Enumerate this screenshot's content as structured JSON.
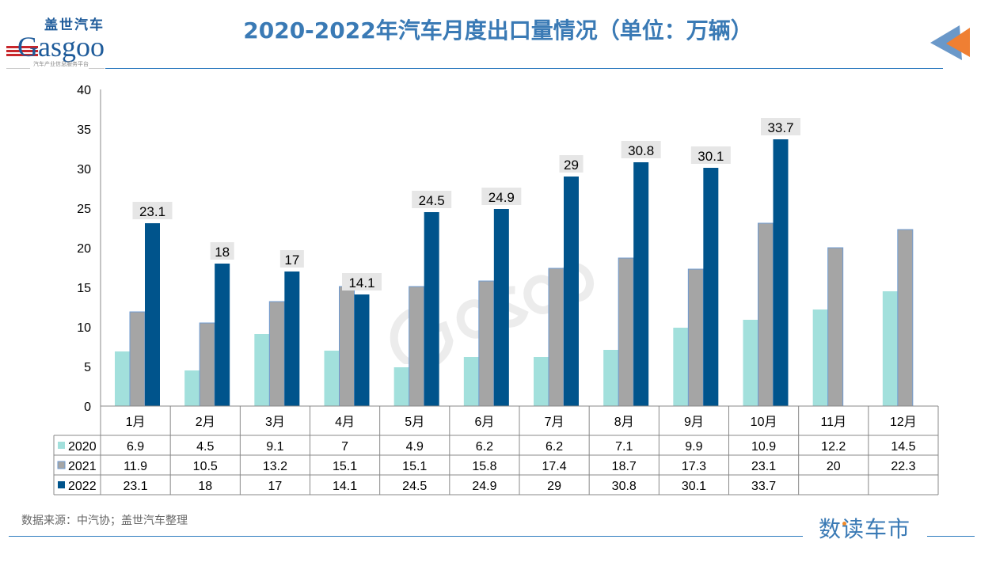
{
  "header": {
    "title": "2020-2022年汽车月度出口量情况（单位：万辆）"
  },
  "logo": {
    "cn": "盖世汽车",
    "en": "Gasgoo",
    "tagline": "汽车产业信息服务平台"
  },
  "footer": {
    "source": "数据来源：中汽协；盖世汽车整理",
    "brand": "数读车市"
  },
  "colors": {
    "2020": "#a2e0dc",
    "2021": "#a5a5a5",
    "2022": "#00548c",
    "accent": "#3a7ab5"
  },
  "chart_data": {
    "type": "bar",
    "title": "2020-2022年汽车月度出口量情况（单位：万辆）",
    "categories": [
      "1月",
      "2月",
      "3月",
      "4月",
      "5月",
      "6月",
      "7月",
      "8月",
      "9月",
      "10月",
      "11月",
      "12月"
    ],
    "series": [
      {
        "name": "2020",
        "values": [
          6.9,
          4.5,
          9.1,
          7,
          4.9,
          6.2,
          6.2,
          7.1,
          9.9,
          10.9,
          12.2,
          14.5
        ]
      },
      {
        "name": "2021",
        "values": [
          11.9,
          10.5,
          13.2,
          15.1,
          15.1,
          15.8,
          17.4,
          18.7,
          17.3,
          23.1,
          20,
          22.3
        ]
      },
      {
        "name": "2022",
        "values": [
          23.1,
          18,
          17,
          14.1,
          24.5,
          24.9,
          29,
          30.8,
          30.1,
          33.7,
          null,
          null
        ]
      }
    ],
    "data_labels_series": "2022",
    "ylim": [
      0,
      40
    ],
    "yticks": [
      0,
      5,
      10,
      15,
      20,
      25,
      30,
      35,
      40
    ],
    "grid": false,
    "legend": "data-table"
  }
}
